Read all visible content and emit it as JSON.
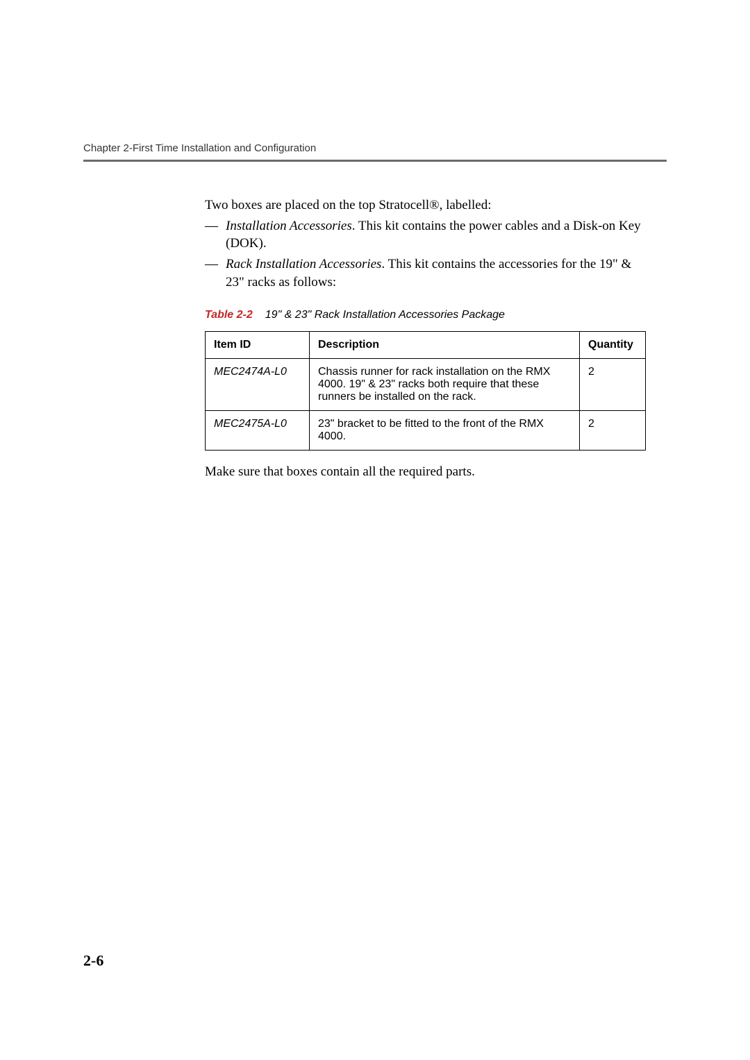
{
  "header": {
    "chapter": "Chapter 2-First Time Installation and Configuration"
  },
  "intro": "Two boxes are placed on the top Stratocell®, labelled:",
  "bullets": [
    {
      "lead": "Installation Accessories",
      "rest": ". This kit contains the power cables and a Disk-on Key (DOK)."
    },
    {
      "lead": "Rack Installation Accessories",
      "rest": ". This kit contains the accessories for the 19\" & 23\" racks as follows:"
    }
  ],
  "tableCaption": {
    "label": "Table 2-2",
    "text": "19\" & 23\" Rack Installation Accessories Package"
  },
  "table": {
    "headers": {
      "id": "Item ID",
      "desc": "Description",
      "qty": "Quantity"
    },
    "rows": [
      {
        "id": "MEC2474A-L0",
        "desc": "Chassis runner for rack installation on the RMX 4000. 19\" & 23\" racks both require that these runners be installed on the rack.",
        "qty": "2"
      },
      {
        "id": "MEC2475A-L0",
        "desc": "23\" bracket to be fitted to the front of the RMX 4000.",
        "qty": "2"
      }
    ]
  },
  "afterTable": "Make sure that boxes contain all the required parts.",
  "pageNumber": "2-6",
  "colors": {
    "captionLabel": "#c22828",
    "rule": "#6b6b6b",
    "text": "#000000",
    "background": "#ffffff"
  },
  "typography": {
    "bodyFont": "Georgia, Times New Roman, serif",
    "sansFont": "Arial, Helvetica, sans-serif",
    "bodySizePx": 19,
    "headerSizePx": 15,
    "captionSizePx": 16,
    "tableSizePx": 16,
    "pageNumSizePx": 22
  },
  "layout": {
    "pageWidthPx": 1080,
    "pageHeightPx": 1527,
    "contentLeftIndentPx": 175
  }
}
